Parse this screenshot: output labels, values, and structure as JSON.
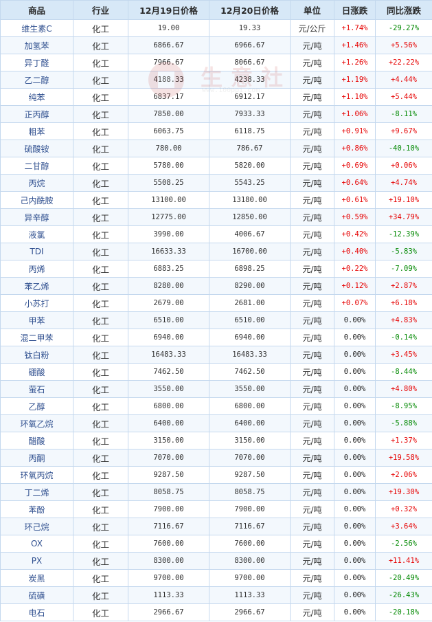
{
  "table": {
    "headers": [
      "商品",
      "行业",
      "12月19日价格",
      "12月20日价格",
      "单位",
      "日涨跌",
      "同比涨跌"
    ],
    "colors": {
      "up": "#e60000",
      "down": "#008800",
      "flat": "#222222"
    },
    "rows": [
      [
        "维生素C",
        "化工",
        "19.00",
        "19.33",
        "元/公斤",
        "+1.74%",
        "-29.27%"
      ],
      [
        "加氢苯",
        "化工",
        "6866.67",
        "6966.67",
        "元/吨",
        "+1.46%",
        "+5.56%"
      ],
      [
        "异丁醛",
        "化工",
        "7966.67",
        "8066.67",
        "元/吨",
        "+1.26%",
        "+22.22%"
      ],
      [
        "乙二醇",
        "化工",
        "4188.33",
        "4238.33",
        "元/吨",
        "+1.19%",
        "+4.44%"
      ],
      [
        "纯苯",
        "化工",
        "6837.17",
        "6912.17",
        "元/吨",
        "+1.10%",
        "+5.44%"
      ],
      [
        "正丙醇",
        "化工",
        "7850.00",
        "7933.33",
        "元/吨",
        "+1.06%",
        "-8.11%"
      ],
      [
        "粗苯",
        "化工",
        "6063.75",
        "6118.75",
        "元/吨",
        "+0.91%",
        "+9.67%"
      ],
      [
        "硫酸铵",
        "化工",
        "780.00",
        "786.67",
        "元/吨",
        "+0.86%",
        "-40.10%"
      ],
      [
        "二甘醇",
        "化工",
        "5780.00",
        "5820.00",
        "元/吨",
        "+0.69%",
        "+0.06%"
      ],
      [
        "丙烷",
        "化工",
        "5508.25",
        "5543.25",
        "元/吨",
        "+0.64%",
        "+4.74%"
      ],
      [
        "己内酰胺",
        "化工",
        "13100.00",
        "13180.00",
        "元/吨",
        "+0.61%",
        "+19.10%"
      ],
      [
        "异辛醇",
        "化工",
        "12775.00",
        "12850.00",
        "元/吨",
        "+0.59%",
        "+34.79%"
      ],
      [
        "液氯",
        "化工",
        "3990.00",
        "4006.67",
        "元/吨",
        "+0.42%",
        "-12.39%"
      ],
      [
        "TDI",
        "化工",
        "16633.33",
        "16700.00",
        "元/吨",
        "+0.40%",
        "-5.83%"
      ],
      [
        "丙烯",
        "化工",
        "6883.25",
        "6898.25",
        "元/吨",
        "+0.22%",
        "-7.09%"
      ],
      [
        "苯乙烯",
        "化工",
        "8280.00",
        "8290.00",
        "元/吨",
        "+0.12%",
        "+2.87%"
      ],
      [
        "小苏打",
        "化工",
        "2679.00",
        "2681.00",
        "元/吨",
        "+0.07%",
        "+6.18%"
      ],
      [
        "甲苯",
        "化工",
        "6510.00",
        "6510.00",
        "元/吨",
        "0.00%",
        "+4.83%"
      ],
      [
        "混二甲苯",
        "化工",
        "6940.00",
        "6940.00",
        "元/吨",
        "0.00%",
        "-0.14%"
      ],
      [
        "钛白粉",
        "化工",
        "16483.33",
        "16483.33",
        "元/吨",
        "0.00%",
        "+3.45%"
      ],
      [
        "硼酸",
        "化工",
        "7462.50",
        "7462.50",
        "元/吨",
        "0.00%",
        "-8.44%"
      ],
      [
        "萤石",
        "化工",
        "3550.00",
        "3550.00",
        "元/吨",
        "0.00%",
        "+4.80%"
      ],
      [
        "乙醇",
        "化工",
        "6800.00",
        "6800.00",
        "元/吨",
        "0.00%",
        "-8.95%"
      ],
      [
        "环氧乙烷",
        "化工",
        "6400.00",
        "6400.00",
        "元/吨",
        "0.00%",
        "-5.88%"
      ],
      [
        "醋酸",
        "化工",
        "3150.00",
        "3150.00",
        "元/吨",
        "0.00%",
        "+1.37%"
      ],
      [
        "丙酮",
        "化工",
        "7070.00",
        "7070.00",
        "元/吨",
        "0.00%",
        "+19.58%"
      ],
      [
        "环氧丙烷",
        "化工",
        "9287.50",
        "9287.50",
        "元/吨",
        "0.00%",
        "+2.06%"
      ],
      [
        "丁二烯",
        "化工",
        "8058.75",
        "8058.75",
        "元/吨",
        "0.00%",
        "+19.30%"
      ],
      [
        "苯酚",
        "化工",
        "7900.00",
        "7900.00",
        "元/吨",
        "0.00%",
        "+0.32%"
      ],
      [
        "环己烷",
        "化工",
        "7116.67",
        "7116.67",
        "元/吨",
        "0.00%",
        "+3.64%"
      ],
      [
        "OX",
        "化工",
        "7600.00",
        "7600.00",
        "元/吨",
        "0.00%",
        "-2.56%"
      ],
      [
        "PX",
        "化工",
        "8300.00",
        "8300.00",
        "元/吨",
        "0.00%",
        "+11.41%"
      ],
      [
        "炭黑",
        "化工",
        "9700.00",
        "9700.00",
        "元/吨",
        "0.00%",
        "-20.49%"
      ],
      [
        "硫磺",
        "化工",
        "1113.33",
        "1113.33",
        "元/吨",
        "0.00%",
        "-26.43%"
      ],
      [
        "电石",
        "化工",
        "2966.67",
        "2966.67",
        "元/吨",
        "0.00%",
        "-20.18%"
      ]
    ]
  },
  "watermark": {
    "text": "生意社",
    "url": "www.100ppi.com"
  }
}
